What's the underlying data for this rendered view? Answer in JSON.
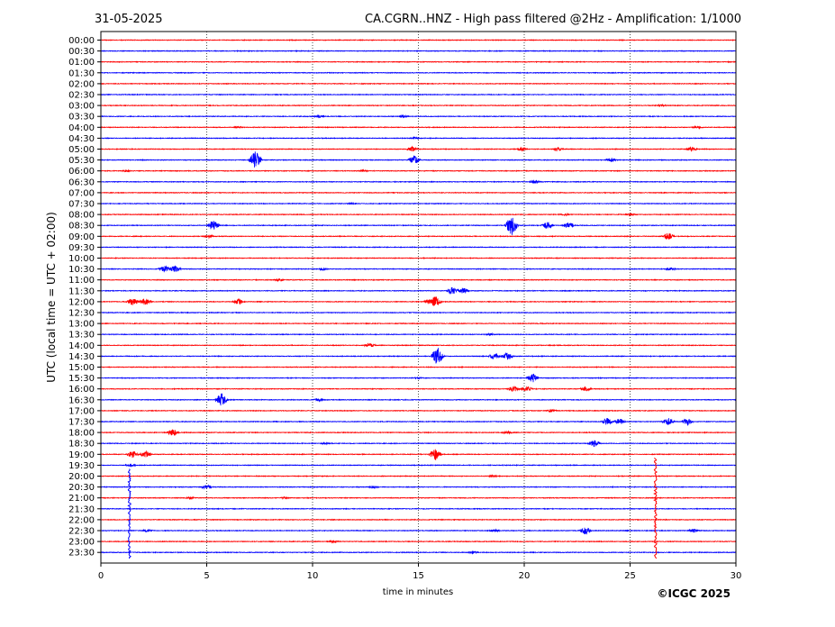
{
  "header": {
    "date": "31-05-2025",
    "title": "CA.CGRN..HNZ - High pass filtered @2Hz - Amplification: 1/1000"
  },
  "footer": {
    "copyright": "©ICGC 2025"
  },
  "chart_data": {
    "type": "line",
    "title": "CA.CGRN..HNZ - High pass filtered @2Hz - Amplification: 1/1000",
    "xlabel": "time in minutes",
    "ylabel": "UTC (local time = UTC + 02:00)",
    "xlim": [
      0,
      30
    ],
    "x_ticks": [
      "0",
      "5",
      "10",
      "15",
      "20",
      "25",
      "30"
    ],
    "x_gridlines": [
      5,
      10,
      15,
      20,
      25
    ],
    "grid": "vertical dotted",
    "colors": {
      "odd_hour": "#ff0000",
      "half_hour": "#0000ff"
    },
    "series": [
      {
        "label": "00:00",
        "color": "#ff0000",
        "events": []
      },
      {
        "label": "00:30",
        "color": "#0000ff",
        "events": []
      },
      {
        "label": "01:00",
        "color": "#ff0000",
        "events": []
      },
      {
        "label": "01:30",
        "color": "#0000ff",
        "events": []
      },
      {
        "label": "02:00",
        "color": "#ff0000",
        "events": []
      },
      {
        "label": "02:30",
        "color": "#0000ff",
        "events": []
      },
      {
        "label": "03:00",
        "color": "#ff0000",
        "events": [
          {
            "t": 26.5,
            "amp": 0.2
          }
        ]
      },
      {
        "label": "03:30",
        "color": "#0000ff",
        "events": [
          {
            "t": 10.3,
            "amp": 0.25
          },
          {
            "t": 14.3,
            "amp": 0.25
          }
        ]
      },
      {
        "label": "04:00",
        "color": "#ff0000",
        "events": [
          {
            "t": 6.5,
            "amp": 0.2
          },
          {
            "t": 28.2,
            "amp": 0.3
          }
        ]
      },
      {
        "label": "04:30",
        "color": "#0000ff",
        "events": [
          {
            "t": 14.8,
            "amp": 0.2
          }
        ]
      },
      {
        "label": "05:00",
        "color": "#ff0000",
        "events": [
          {
            "t": 14.7,
            "amp": 0.5
          },
          {
            "t": 19.9,
            "amp": 0.4
          },
          {
            "t": 21.6,
            "amp": 0.35
          },
          {
            "t": 27.9,
            "amp": 0.45
          }
        ]
      },
      {
        "label": "05:30",
        "color": "#0000ff",
        "events": [
          {
            "t": 7.3,
            "amp": 1.8
          },
          {
            "t": 14.8,
            "amp": 0.9
          },
          {
            "t": 24.1,
            "amp": 0.4
          }
        ]
      },
      {
        "label": "06:00",
        "color": "#ff0000",
        "events": [
          {
            "t": 1.2,
            "amp": 0.2
          },
          {
            "t": 12.4,
            "amp": 0.2
          }
        ]
      },
      {
        "label": "06:30",
        "color": "#0000ff",
        "events": [
          {
            "t": 20.5,
            "amp": 0.35
          }
        ]
      },
      {
        "label": "07:00",
        "color": "#ff0000",
        "events": []
      },
      {
        "label": "07:30",
        "color": "#0000ff",
        "events": [
          {
            "t": 11.8,
            "amp": 0.2
          }
        ]
      },
      {
        "label": "08:00",
        "color": "#ff0000",
        "events": [
          {
            "t": 21.9,
            "amp": 0.25
          },
          {
            "t": 25.0,
            "amp": 0.25
          }
        ]
      },
      {
        "label": "08:30",
        "color": "#0000ff",
        "events": [
          {
            "t": 5.3,
            "amp": 1.0
          },
          {
            "t": 19.4,
            "amp": 2.0
          },
          {
            "t": 21.1,
            "amp": 0.7
          },
          {
            "t": 22.1,
            "amp": 0.7
          }
        ]
      },
      {
        "label": "09:00",
        "color": "#ff0000",
        "events": [
          {
            "t": 5.1,
            "amp": 0.3
          },
          {
            "t": 26.8,
            "amp": 0.7
          }
        ]
      },
      {
        "label": "09:30",
        "color": "#0000ff",
        "events": []
      },
      {
        "label": "10:00",
        "color": "#ff0000",
        "events": []
      },
      {
        "label": "10:30",
        "color": "#0000ff",
        "events": [
          {
            "t": 3.0,
            "amp": 0.7
          },
          {
            "t": 3.5,
            "amp": 0.7
          },
          {
            "t": 10.5,
            "amp": 0.3
          },
          {
            "t": 26.9,
            "amp": 0.3
          }
        ]
      },
      {
        "label": "11:00",
        "color": "#ff0000",
        "events": [
          {
            "t": 8.4,
            "amp": 0.25
          }
        ]
      },
      {
        "label": "11:30",
        "color": "#0000ff",
        "events": [
          {
            "t": 16.6,
            "amp": 0.7
          },
          {
            "t": 17.1,
            "amp": 0.7
          }
        ]
      },
      {
        "label": "12:00",
        "color": "#ff0000",
        "events": [
          {
            "t": 1.5,
            "amp": 0.7
          },
          {
            "t": 2.1,
            "amp": 0.7
          },
          {
            "t": 6.5,
            "amp": 0.6
          },
          {
            "t": 15.5,
            "amp": 0.5
          },
          {
            "t": 15.8,
            "amp": 1.1
          }
        ]
      },
      {
        "label": "12:30",
        "color": "#0000ff",
        "events": []
      },
      {
        "label": "13:00",
        "color": "#ff0000",
        "events": []
      },
      {
        "label": "13:30",
        "color": "#0000ff",
        "events": [
          {
            "t": 18.4,
            "amp": 0.25
          }
        ]
      },
      {
        "label": "14:00",
        "color": "#ff0000",
        "events": [
          {
            "t": 12.7,
            "amp": 0.45
          }
        ]
      },
      {
        "label": "14:30",
        "color": "#0000ff",
        "events": [
          {
            "t": 15.9,
            "amp": 1.8
          },
          {
            "t": 18.6,
            "amp": 0.7
          },
          {
            "t": 19.2,
            "amp": 0.7
          }
        ]
      },
      {
        "label": "15:00",
        "color": "#ff0000",
        "events": []
      },
      {
        "label": "15:30",
        "color": "#0000ff",
        "events": [
          {
            "t": 20.4,
            "amp": 0.9
          },
          {
            "t": 15.0,
            "amp": 0.2
          }
        ]
      },
      {
        "label": "16:00",
        "color": "#ff0000",
        "events": [
          {
            "t": 19.5,
            "amp": 0.6
          },
          {
            "t": 20.1,
            "amp": 0.5
          },
          {
            "t": 22.9,
            "amp": 0.5
          }
        ]
      },
      {
        "label": "16:30",
        "color": "#0000ff",
        "events": [
          {
            "t": 5.7,
            "amp": 1.3
          },
          {
            "t": 10.3,
            "amp": 0.3
          }
        ]
      },
      {
        "label": "17:00",
        "color": "#ff0000",
        "events": [
          {
            "t": 21.3,
            "amp": 0.3
          }
        ]
      },
      {
        "label": "17:30",
        "color": "#0000ff",
        "events": [
          {
            "t": 23.9,
            "amp": 0.7
          },
          {
            "t": 24.5,
            "amp": 0.6
          },
          {
            "t": 26.8,
            "amp": 0.7
          },
          {
            "t": 27.7,
            "amp": 0.7
          }
        ]
      },
      {
        "label": "18:00",
        "color": "#ff0000",
        "events": [
          {
            "t": 3.4,
            "amp": 0.7
          },
          {
            "t": 19.2,
            "amp": 0.3
          }
        ]
      },
      {
        "label": "18:30",
        "color": "#0000ff",
        "events": [
          {
            "t": 23.3,
            "amp": 0.7
          },
          {
            "t": 10.6,
            "amp": 0.2
          }
        ]
      },
      {
        "label": "19:00",
        "color": "#ff0000",
        "events": [
          {
            "t": 1.5,
            "amp": 0.7
          },
          {
            "t": 2.1,
            "amp": 0.7
          },
          {
            "t": 15.8,
            "amp": 1.2
          }
        ]
      },
      {
        "label": "19:30",
        "color": "#0000ff",
        "events": [
          {
            "t": 1.4,
            "amp": 0.3
          }
        ]
      },
      {
        "label": "20:00",
        "color": "#ff0000",
        "events": [
          {
            "t": 18.5,
            "amp": 0.2
          }
        ]
      },
      {
        "label": "20:30",
        "color": "#0000ff",
        "events": [
          {
            "t": 5.0,
            "amp": 0.45
          },
          {
            "t": 12.9,
            "amp": 0.25
          }
        ]
      },
      {
        "label": "21:00",
        "color": "#ff0000",
        "events": [
          {
            "t": 4.2,
            "amp": 0.25
          },
          {
            "t": 8.7,
            "amp": 0.2
          }
        ]
      },
      {
        "label": "21:30",
        "color": "#0000ff",
        "events": []
      },
      {
        "label": "22:00",
        "color": "#ff0000",
        "events": []
      },
      {
        "label": "22:30",
        "color": "#0000ff",
        "events": [
          {
            "t": 2.2,
            "amp": 0.3
          },
          {
            "t": 18.6,
            "amp": 0.3
          },
          {
            "t": 22.9,
            "amp": 0.8
          },
          {
            "t": 28.0,
            "amp": 0.4
          }
        ]
      },
      {
        "label": "23:00",
        "color": "#ff0000",
        "events": [
          {
            "t": 11.0,
            "amp": 0.25
          }
        ]
      },
      {
        "label": "23:30",
        "color": "#0000ff",
        "events": [
          {
            "t": 17.6,
            "amp": 0.3
          }
        ]
      }
    ],
    "large_events": [
      {
        "t": 1.35,
        "from_row": "20:00",
        "to_row": "23:30",
        "color": "#0000ff"
      },
      {
        "t": 26.2,
        "from_row": "19:30",
        "to_row": "23:30",
        "color": "#ff0000"
      }
    ]
  }
}
